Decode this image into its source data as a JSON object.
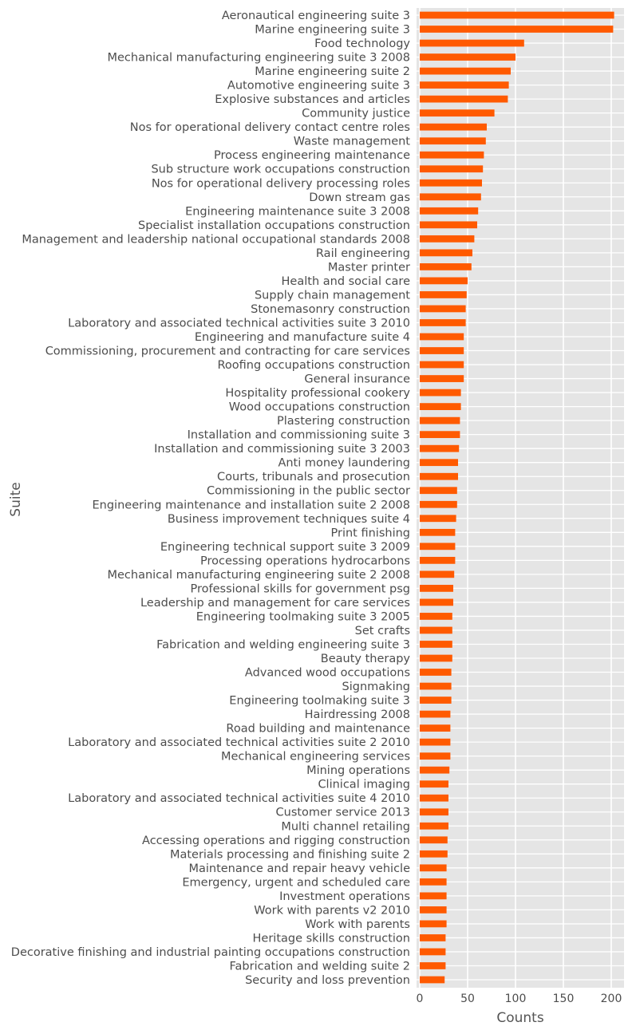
{
  "chart_data": {
    "type": "bar",
    "orientation": "horizontal",
    "xlabel": "Counts",
    "ylabel": "Suite",
    "xlim": [
      0,
      212
    ],
    "xticks": [
      0,
      50,
      100,
      150,
      200
    ],
    "grid": true,
    "bar_color": "#ff5a00",
    "background_color": "#e5e5e5",
    "categories": [
      "Aeronautical engineering suite 3",
      "Marine engineering suite 3",
      "Food technology",
      "Mechanical manufacturing engineering suite 3 2008",
      "Marine engineering suite 2",
      "Automotive engineering suite 3",
      "Explosive substances and articles",
      "Community justice",
      "Nos for operational delivery contact centre roles",
      "Waste management",
      "Process engineering maintenance",
      "Sub structure work occupations construction",
      "Nos for operational delivery processing roles",
      "Down stream gas",
      "Engineering maintenance suite 3 2008",
      "Specialist installation occupations construction",
      "Management and leadership national occupational standards 2008",
      "Rail engineering",
      "Master printer",
      "Health and social care",
      "Supply chain management",
      "Stonemasonry construction",
      "Laboratory and associated technical activities suite 3 2010",
      "Engineering and manufacture suite 4",
      "Commissioning, procurement and contracting for care services",
      "Roofing occupations construction",
      "General insurance",
      "Hospitality professional cookery",
      "Wood occupations construction",
      "Plastering construction",
      "Installation and commissioning suite 3",
      "Installation and commissioning suite 3 2003",
      "Anti money laundering",
      "Courts, tribunals and prosecution",
      "Commissioning in the public sector",
      "Engineering maintenance and installation suite 2 2008",
      "Business improvement techniques suite 4",
      "Print finishing",
      "Engineering technical support suite 3 2009",
      "Processing operations hydrocarbons",
      "Mechanical manufacturing engineering suite 2 2008",
      "Professional skills for government psg",
      "Leadership and management for care services",
      "Engineering toolmaking suite 3 2005",
      "Set crafts",
      "Fabrication and welding engineering suite 3",
      "Beauty therapy",
      "Advanced wood occupations",
      "Signmaking",
      "Engineering toolmaking suite 3",
      "Hairdressing 2008",
      "Road building and maintenance",
      "Laboratory and associated technical activities suite 2 2010",
      "Mechanical engineering services",
      "Mining operations",
      "Clinical imaging",
      "Laboratory and associated technical activities suite 4 2010",
      "Customer service 2013",
      "Multi channel retailing",
      "Accessing operations and rigging construction",
      "Materials processing and finishing suite 2",
      "Maintenance and repair heavy vehicle",
      "Emergency, urgent and scheduled care",
      "Investment operations",
      "Work with parents v2 2010",
      "Work with parents",
      "Heritage skills construction",
      "Decorative finishing and industrial painting occupations construction",
      "Fabrication and welding suite 2",
      "Security and loss prevention"
    ],
    "values": [
      203,
      202,
      109,
      100,
      95,
      93,
      92,
      78,
      70,
      69,
      67,
      66,
      65,
      64,
      61,
      60,
      57,
      55,
      54,
      50,
      49,
      48,
      48,
      46,
      46,
      46,
      46,
      43,
      43,
      42,
      42,
      41,
      40,
      40,
      39,
      39,
      38,
      37,
      37,
      37,
      36,
      35,
      35,
      34,
      34,
      34,
      34,
      33,
      33,
      33,
      32,
      32,
      32,
      32,
      31,
      30,
      30,
      30,
      30,
      29,
      29,
      28,
      28,
      28,
      28,
      28,
      27,
      27,
      27,
      26
    ]
  }
}
